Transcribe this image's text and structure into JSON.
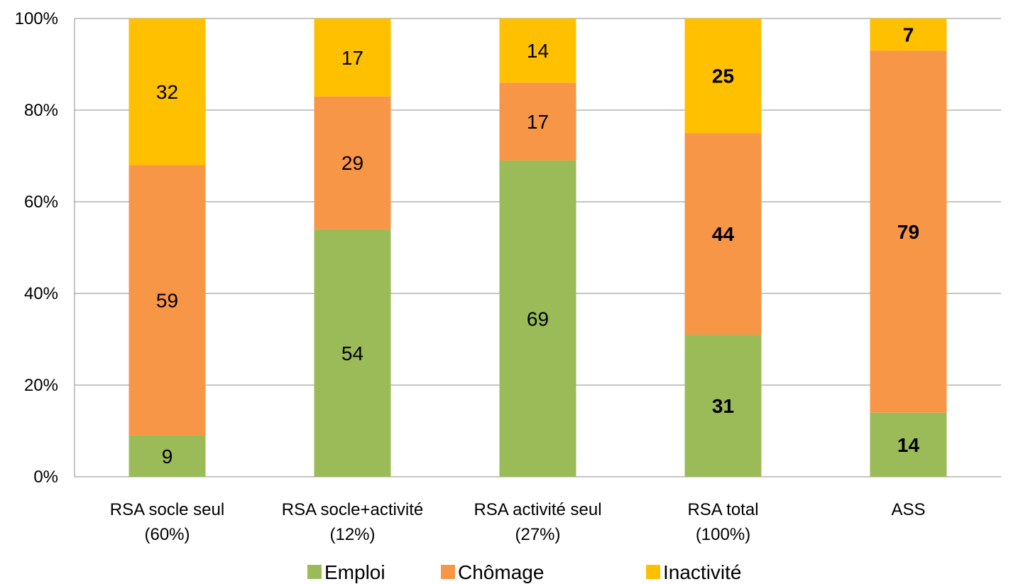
{
  "chart_data": {
    "type": "bar",
    "stacked": true,
    "categories": [
      [
        "RSA socle seul",
        "(60%)"
      ],
      [
        "RSA socle+activité",
        "(12%)"
      ],
      [
        "RSA activité seul",
        "(27%)"
      ],
      [
        "RSA total",
        "(100%)"
      ],
      [
        "ASS",
        ""
      ]
    ],
    "series": [
      {
        "name": "Emploi",
        "color": "#9BBB59",
        "values": [
          9,
          54,
          69,
          31,
          14
        ]
      },
      {
        "name": "Chômage",
        "color": "#F79646",
        "values": [
          59,
          29,
          17,
          44,
          79
        ]
      },
      {
        "name": "Inactivité",
        "color": "#FFC000",
        "values": [
          32,
          17,
          14,
          25,
          7
        ]
      }
    ],
    "bold_categories": [
      false,
      false,
      false,
      true,
      true
    ],
    "ylim": [
      0,
      100
    ],
    "yticks": [
      "0%",
      "20%",
      "40%",
      "60%",
      "80%",
      "100%"
    ],
    "grid": true,
    "legend_position": "bottom"
  }
}
